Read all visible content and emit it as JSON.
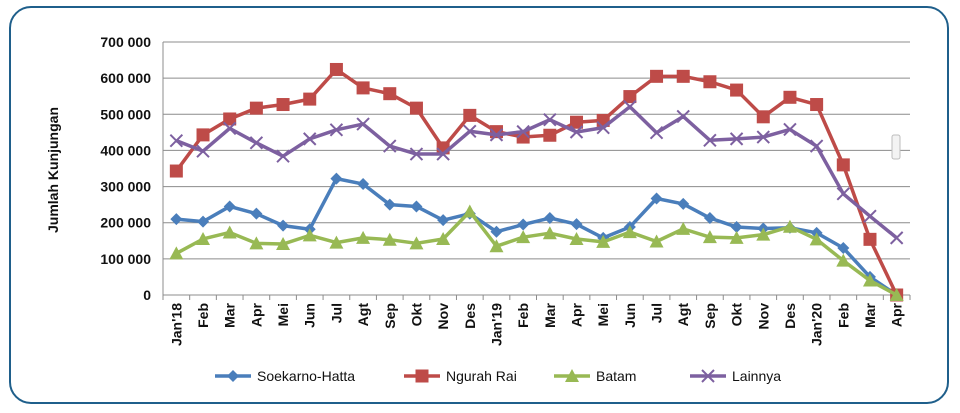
{
  "chart_data": {
    "type": "line",
    "ylabel": "Jumlah Kunjungan",
    "ylim": [
      0,
      700000
    ],
    "yticks": [
      0,
      100000,
      200000,
      300000,
      400000,
      500000,
      600000,
      700000
    ],
    "ytick_labels": [
      "0",
      "100 000",
      "200 000",
      "300 000",
      "400 000",
      "500 000",
      "600 000",
      "700 000"
    ],
    "grid": true,
    "legend": "bottom",
    "categories": [
      "Jan'18",
      "Feb",
      "Mar",
      "Apr",
      "Mei",
      "Jun",
      "Jul",
      "Agt",
      "Sep",
      "Okt",
      "Nov",
      "Des",
      "Jan'19",
      "Feb",
      "Mar",
      "Apr",
      "Mei",
      "Jun",
      "Jul",
      "Agt",
      "Sep",
      "Okt",
      "Nov",
      "Des",
      "Jan'20",
      "Feb",
      "Mar",
      "Apr"
    ],
    "series": [
      {
        "name": "Soekarno-Hatta",
        "color": "#4a7ebb",
        "marker": "diamond",
        "values": [
          210000,
          203000,
          245000,
          225000,
          192000,
          182000,
          322000,
          307000,
          250000,
          245000,
          207000,
          225000,
          175000,
          195000,
          213000,
          196000,
          158000,
          188000,
          267000,
          252000,
          213000,
          188000,
          184000,
          186000,
          172000,
          130000,
          50000,
          0
        ]
      },
      {
        "name": "Ngurah Rai",
        "color": "#be4b48",
        "marker": "square",
        "values": [
          343000,
          443000,
          487000,
          517000,
          527000,
          542000,
          624000,
          573000,
          557000,
          517000,
          407000,
          497000,
          452000,
          437000,
          442000,
          478000,
          483000,
          549000,
          605000,
          605000,
          590000,
          567000,
          493000,
          547000,
          527000,
          360000,
          154000,
          0
        ]
      },
      {
        "name": "Batam",
        "color": "#98b954",
        "marker": "triangle",
        "values": [
          115000,
          155000,
          173000,
          143000,
          141000,
          165000,
          145000,
          158000,
          153000,
          143000,
          155000,
          231000,
          135000,
          160000,
          171000,
          155000,
          147000,
          174000,
          148000,
          183000,
          160000,
          158000,
          167000,
          189000,
          154000,
          95000,
          40000,
          0
        ]
      },
      {
        "name": "Lainnya",
        "color": "#7d60a0",
        "marker": "x",
        "values": [
          427000,
          398000,
          461000,
          421000,
          384000,
          432000,
          457000,
          473000,
          412000,
          390000,
          390000,
          453000,
          443000,
          452000,
          485000,
          451000,
          463000,
          521000,
          449000,
          494000,
          428000,
          432000,
          437000,
          458000,
          412000,
          280000,
          218000,
          158000
        ]
      }
    ]
  }
}
